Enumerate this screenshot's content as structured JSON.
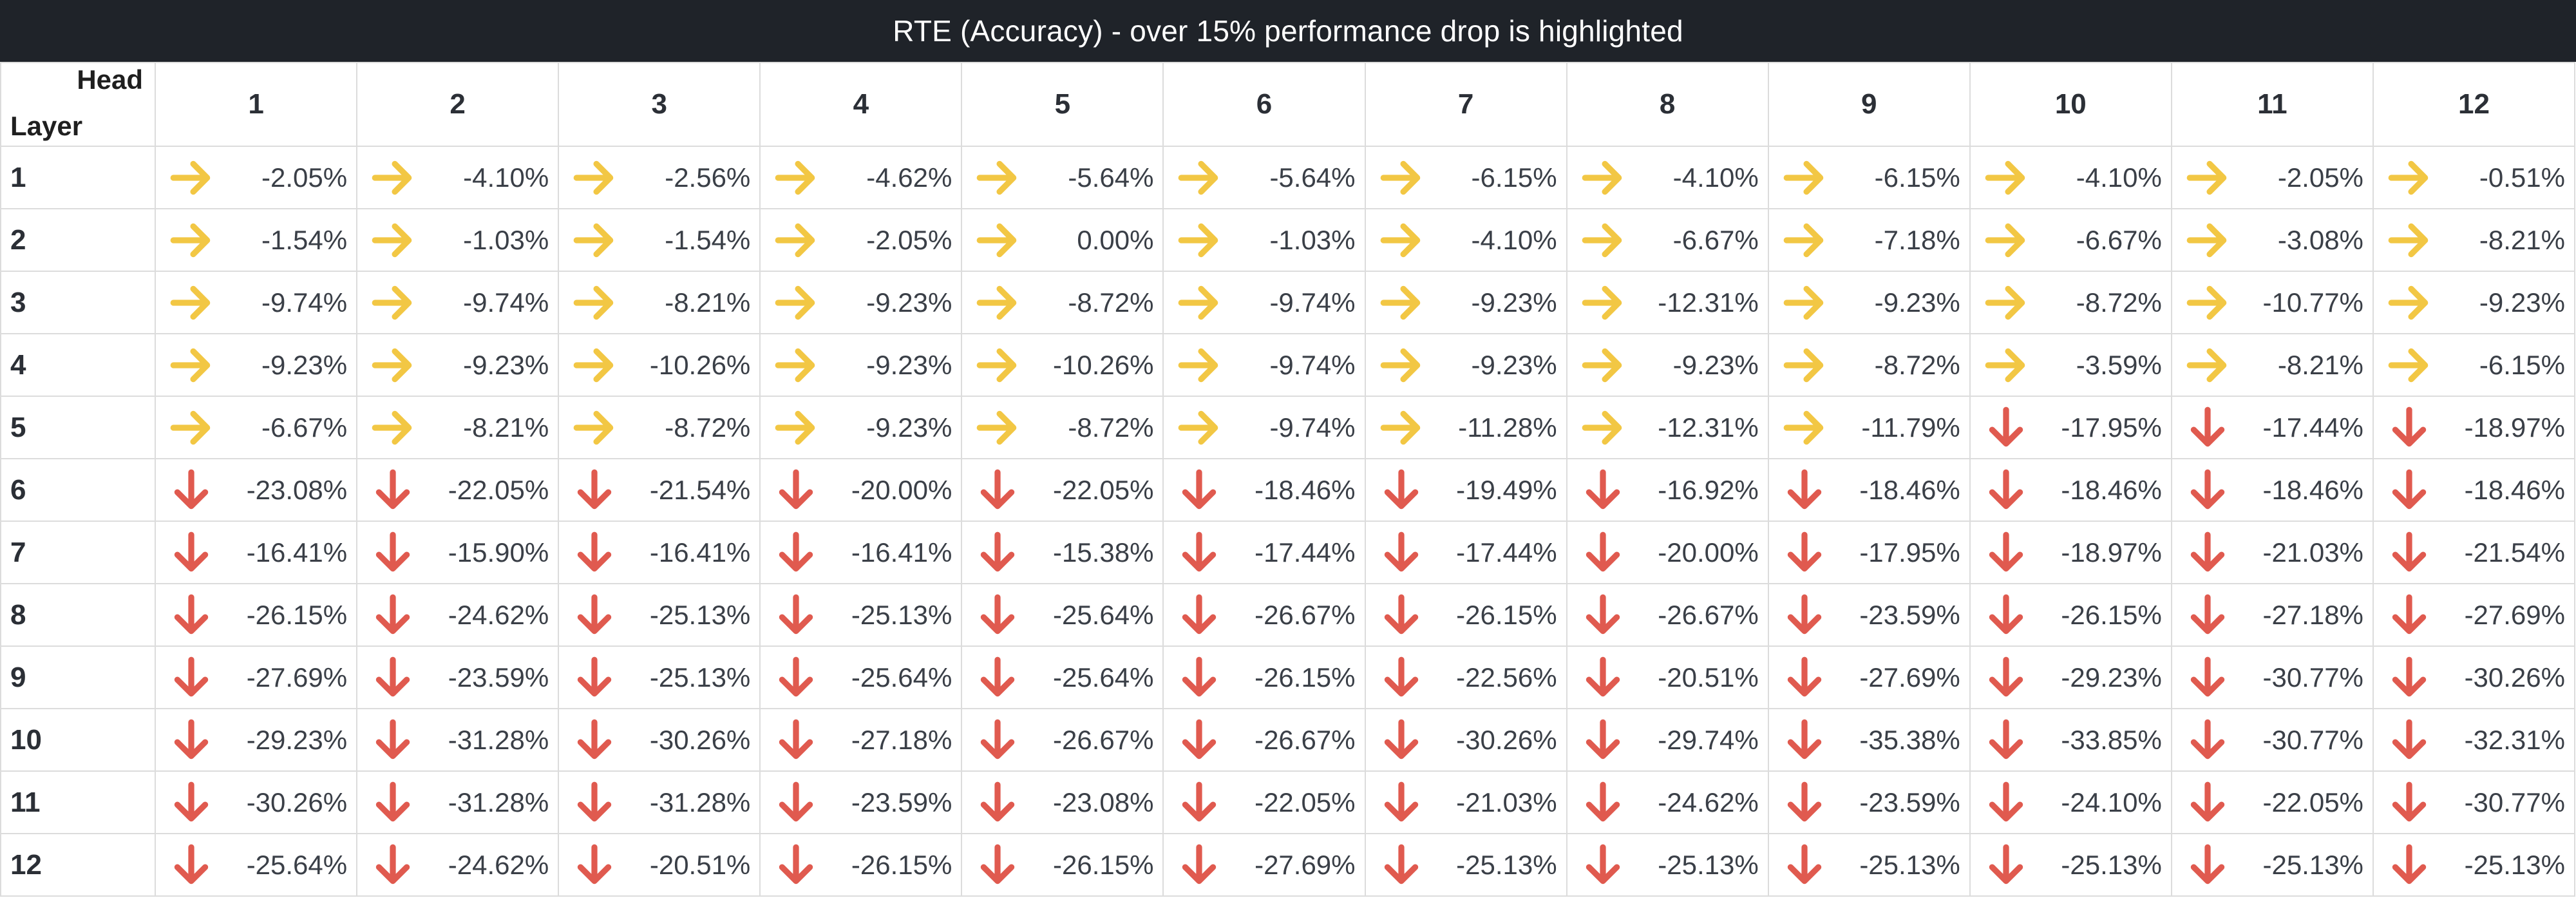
{
  "title": "RTE (Accuracy) - over 15% performance drop is highlighted",
  "corner": {
    "head_label": "Head",
    "layer_label": "Layer"
  },
  "columns": [
    "1",
    "2",
    "3",
    "4",
    "5",
    "6",
    "7",
    "8",
    "9",
    "10",
    "11",
    "12"
  ],
  "colors": {
    "flat": "#f2c744",
    "down": "#e05a4f",
    "header_bg": "#1f2329"
  },
  "icons": {
    "flat": "right-arrow-icon",
    "down": "down-arrow-icon"
  },
  "rows": [
    {
      "layer": "1",
      "cells": [
        {
          "value": "-2.05%",
          "trend": "flat"
        },
        {
          "value": "-4.10%",
          "trend": "flat"
        },
        {
          "value": "-2.56%",
          "trend": "flat"
        },
        {
          "value": "-4.62%",
          "trend": "flat"
        },
        {
          "value": "-5.64%",
          "trend": "flat"
        },
        {
          "value": "-5.64%",
          "trend": "flat"
        },
        {
          "value": "-6.15%",
          "trend": "flat"
        },
        {
          "value": "-4.10%",
          "trend": "flat"
        },
        {
          "value": "-6.15%",
          "trend": "flat"
        },
        {
          "value": "-4.10%",
          "trend": "flat"
        },
        {
          "value": "-2.05%",
          "trend": "flat"
        },
        {
          "value": "-0.51%",
          "trend": "flat"
        }
      ]
    },
    {
      "layer": "2",
      "cells": [
        {
          "value": "-1.54%",
          "trend": "flat"
        },
        {
          "value": "-1.03%",
          "trend": "flat"
        },
        {
          "value": "-1.54%",
          "trend": "flat"
        },
        {
          "value": "-2.05%",
          "trend": "flat"
        },
        {
          "value": "0.00%",
          "trend": "flat"
        },
        {
          "value": "-1.03%",
          "trend": "flat"
        },
        {
          "value": "-4.10%",
          "trend": "flat"
        },
        {
          "value": "-6.67%",
          "trend": "flat"
        },
        {
          "value": "-7.18%",
          "trend": "flat"
        },
        {
          "value": "-6.67%",
          "trend": "flat"
        },
        {
          "value": "-3.08%",
          "trend": "flat"
        },
        {
          "value": "-8.21%",
          "trend": "flat"
        }
      ]
    },
    {
      "layer": "3",
      "cells": [
        {
          "value": "-9.74%",
          "trend": "flat"
        },
        {
          "value": "-9.74%",
          "trend": "flat"
        },
        {
          "value": "-8.21%",
          "trend": "flat"
        },
        {
          "value": "-9.23%",
          "trend": "flat"
        },
        {
          "value": "-8.72%",
          "trend": "flat"
        },
        {
          "value": "-9.74%",
          "trend": "flat"
        },
        {
          "value": "-9.23%",
          "trend": "flat"
        },
        {
          "value": "-12.31%",
          "trend": "flat"
        },
        {
          "value": "-9.23%",
          "trend": "flat"
        },
        {
          "value": "-8.72%",
          "trend": "flat"
        },
        {
          "value": "-10.77%",
          "trend": "flat"
        },
        {
          "value": "-9.23%",
          "trend": "flat"
        }
      ]
    },
    {
      "layer": "4",
      "cells": [
        {
          "value": "-9.23%",
          "trend": "flat"
        },
        {
          "value": "-9.23%",
          "trend": "flat"
        },
        {
          "value": "-10.26%",
          "trend": "flat"
        },
        {
          "value": "-9.23%",
          "trend": "flat"
        },
        {
          "value": "-10.26%",
          "trend": "flat"
        },
        {
          "value": "-9.74%",
          "trend": "flat"
        },
        {
          "value": "-9.23%",
          "trend": "flat"
        },
        {
          "value": "-9.23%",
          "trend": "flat"
        },
        {
          "value": "-8.72%",
          "trend": "flat"
        },
        {
          "value": "-3.59%",
          "trend": "flat"
        },
        {
          "value": "-8.21%",
          "trend": "flat"
        },
        {
          "value": "-6.15%",
          "trend": "flat"
        }
      ]
    },
    {
      "layer": "5",
      "cells": [
        {
          "value": "-6.67%",
          "trend": "flat"
        },
        {
          "value": "-8.21%",
          "trend": "flat"
        },
        {
          "value": "-8.72%",
          "trend": "flat"
        },
        {
          "value": "-9.23%",
          "trend": "flat"
        },
        {
          "value": "-8.72%",
          "trend": "flat"
        },
        {
          "value": "-9.74%",
          "trend": "flat"
        },
        {
          "value": "-11.28%",
          "trend": "flat"
        },
        {
          "value": "-12.31%",
          "trend": "flat"
        },
        {
          "value": "-11.79%",
          "trend": "flat"
        },
        {
          "value": "-17.95%",
          "trend": "down"
        },
        {
          "value": "-17.44%",
          "trend": "down"
        },
        {
          "value": "-18.97%",
          "trend": "down"
        }
      ]
    },
    {
      "layer": "6",
      "cells": [
        {
          "value": "-23.08%",
          "trend": "down"
        },
        {
          "value": "-22.05%",
          "trend": "down"
        },
        {
          "value": "-21.54%",
          "trend": "down"
        },
        {
          "value": "-20.00%",
          "trend": "down"
        },
        {
          "value": "-22.05%",
          "trend": "down"
        },
        {
          "value": "-18.46%",
          "trend": "down"
        },
        {
          "value": "-19.49%",
          "trend": "down"
        },
        {
          "value": "-16.92%",
          "trend": "down"
        },
        {
          "value": "-18.46%",
          "trend": "down"
        },
        {
          "value": "-18.46%",
          "trend": "down"
        },
        {
          "value": "-18.46%",
          "trend": "down"
        },
        {
          "value": "-18.46%",
          "trend": "down"
        }
      ]
    },
    {
      "layer": "7",
      "cells": [
        {
          "value": "-16.41%",
          "trend": "down"
        },
        {
          "value": "-15.90%",
          "trend": "down"
        },
        {
          "value": "-16.41%",
          "trend": "down"
        },
        {
          "value": "-16.41%",
          "trend": "down"
        },
        {
          "value": "-15.38%",
          "trend": "down"
        },
        {
          "value": "-17.44%",
          "trend": "down"
        },
        {
          "value": "-17.44%",
          "trend": "down"
        },
        {
          "value": "-20.00%",
          "trend": "down"
        },
        {
          "value": "-17.95%",
          "trend": "down"
        },
        {
          "value": "-18.97%",
          "trend": "down"
        },
        {
          "value": "-21.03%",
          "trend": "down"
        },
        {
          "value": "-21.54%",
          "trend": "down"
        }
      ]
    },
    {
      "layer": "8",
      "cells": [
        {
          "value": "-26.15%",
          "trend": "down"
        },
        {
          "value": "-24.62%",
          "trend": "down"
        },
        {
          "value": "-25.13%",
          "trend": "down"
        },
        {
          "value": "-25.13%",
          "trend": "down"
        },
        {
          "value": "-25.64%",
          "trend": "down"
        },
        {
          "value": "-26.67%",
          "trend": "down"
        },
        {
          "value": "-26.15%",
          "trend": "down"
        },
        {
          "value": "-26.67%",
          "trend": "down"
        },
        {
          "value": "-23.59%",
          "trend": "down"
        },
        {
          "value": "-26.15%",
          "trend": "down"
        },
        {
          "value": "-27.18%",
          "trend": "down"
        },
        {
          "value": "-27.69%",
          "trend": "down"
        }
      ]
    },
    {
      "layer": "9",
      "cells": [
        {
          "value": "-27.69%",
          "trend": "down"
        },
        {
          "value": "-23.59%",
          "trend": "down"
        },
        {
          "value": "-25.13%",
          "trend": "down"
        },
        {
          "value": "-25.64%",
          "trend": "down"
        },
        {
          "value": "-25.64%",
          "trend": "down"
        },
        {
          "value": "-26.15%",
          "trend": "down"
        },
        {
          "value": "-22.56%",
          "trend": "down"
        },
        {
          "value": "-20.51%",
          "trend": "down"
        },
        {
          "value": "-27.69%",
          "trend": "down"
        },
        {
          "value": "-29.23%",
          "trend": "down"
        },
        {
          "value": "-30.77%",
          "trend": "down"
        },
        {
          "value": "-30.26%",
          "trend": "down"
        }
      ]
    },
    {
      "layer": "10",
      "cells": [
        {
          "value": "-29.23%",
          "trend": "down"
        },
        {
          "value": "-31.28%",
          "trend": "down"
        },
        {
          "value": "-30.26%",
          "trend": "down"
        },
        {
          "value": "-27.18%",
          "trend": "down"
        },
        {
          "value": "-26.67%",
          "trend": "down"
        },
        {
          "value": "-26.67%",
          "trend": "down"
        },
        {
          "value": "-30.26%",
          "trend": "down"
        },
        {
          "value": "-29.74%",
          "trend": "down"
        },
        {
          "value": "-35.38%",
          "trend": "down"
        },
        {
          "value": "-33.85%",
          "trend": "down"
        },
        {
          "value": "-30.77%",
          "trend": "down"
        },
        {
          "value": "-32.31%",
          "trend": "down"
        }
      ]
    },
    {
      "layer": "11",
      "cells": [
        {
          "value": "-30.26%",
          "trend": "down"
        },
        {
          "value": "-31.28%",
          "trend": "down"
        },
        {
          "value": "-31.28%",
          "trend": "down"
        },
        {
          "value": "-23.59%",
          "trend": "down"
        },
        {
          "value": "-23.08%",
          "trend": "down"
        },
        {
          "value": "-22.05%",
          "trend": "down"
        },
        {
          "value": "-21.03%",
          "trend": "down"
        },
        {
          "value": "-24.62%",
          "trend": "down"
        },
        {
          "value": "-23.59%",
          "trend": "down"
        },
        {
          "value": "-24.10%",
          "trend": "down"
        },
        {
          "value": "-22.05%",
          "trend": "down"
        },
        {
          "value": "-30.77%",
          "trend": "down"
        }
      ]
    },
    {
      "layer": "12",
      "cells": [
        {
          "value": "-25.64%",
          "trend": "down"
        },
        {
          "value": "-24.62%",
          "trend": "down"
        },
        {
          "value": "-20.51%",
          "trend": "down"
        },
        {
          "value": "-26.15%",
          "trend": "down"
        },
        {
          "value": "-26.15%",
          "trend": "down"
        },
        {
          "value": "-27.69%",
          "trend": "down"
        },
        {
          "value": "-25.13%",
          "trend": "down"
        },
        {
          "value": "-25.13%",
          "trend": "down"
        },
        {
          "value": "-25.13%",
          "trend": "down"
        },
        {
          "value": "-25.13%",
          "trend": "down"
        },
        {
          "value": "-25.13%",
          "trend": "down"
        },
        {
          "value": "-25.13%",
          "trend": "down"
        }
      ]
    }
  ]
}
